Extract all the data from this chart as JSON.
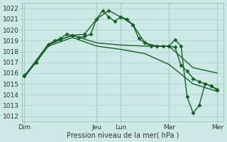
{
  "background_color": "#cce9e5",
  "grid_color": "#aad4ce",
  "line_color": "#1a5c2a",
  "ylabel_bottom": "Pression niveau de la mer( hPa )",
  "ylim": [
    1011.5,
    1022.5
  ],
  "yticks": [
    1012,
    1013,
    1014,
    1015,
    1016,
    1017,
    1018,
    1019,
    1020,
    1021,
    1022
  ],
  "xtick_labels": [
    "Dim",
    "Jeu",
    "Lun",
    "Mar",
    "Mer"
  ],
  "xtick_positions": [
    0,
    36,
    48,
    72,
    96
  ],
  "xlim": [
    -1,
    99
  ],
  "vline_positions": [
    0,
    36,
    48,
    72,
    96
  ],
  "series": [
    {
      "x": [
        0,
        6,
        12,
        15,
        18,
        21,
        24,
        27,
        30,
        33,
        36,
        39,
        42,
        45,
        48,
        51,
        54,
        57,
        60,
        63,
        66,
        69,
        72,
        75,
        78,
        81,
        84,
        87,
        90,
        93,
        96
      ],
      "y": [
        1015.8,
        1017.0,
        1018.6,
        1019.0,
        1019.2,
        1019.6,
        1019.5,
        1019.3,
        1019.4,
        1019.6,
        1021.0,
        1021.8,
        1021.2,
        1020.8,
        1021.2,
        1021.0,
        1020.5,
        1019.2,
        1018.8,
        1018.5,
        1018.5,
        1018.5,
        1018.5,
        1018.4,
        1016.7,
        1016.2,
        1015.5,
        1015.2,
        1015.0,
        1014.8,
        1014.5
      ],
      "markers": true,
      "linewidth": 1.0,
      "markersize": 2.5
    },
    {
      "x": [
        0,
        12,
        24,
        36,
        48,
        60,
        72,
        84,
        96
      ],
      "y": [
        1015.7,
        1018.7,
        1019.5,
        1018.8,
        1018.6,
        1018.5,
        1018.5,
        1016.5,
        1016.0
      ],
      "markers": false,
      "linewidth": 1.0,
      "markersize": 0
    },
    {
      "x": [
        0,
        12,
        24,
        36,
        48,
        60,
        72,
        84,
        96
      ],
      "y": [
        1015.6,
        1018.5,
        1019.3,
        1018.5,
        1018.2,
        1017.8,
        1016.8,
        1015.0,
        1014.3
      ],
      "markers": false,
      "linewidth": 1.0,
      "markersize": 0
    },
    {
      "x": [
        0,
        6,
        12,
        18,
        24,
        30,
        36,
        42,
        48,
        54,
        60,
        66,
        72,
        75,
        78,
        81,
        84,
        87,
        90,
        93,
        96
      ],
      "y": [
        1015.7,
        1017.0,
        1018.6,
        1019.1,
        1019.5,
        1019.6,
        1021.0,
        1021.8,
        1021.2,
        1020.5,
        1018.8,
        1018.5,
        1018.5,
        1019.1,
        1018.5,
        1013.8,
        1012.3,
        1013.0,
        1015.0,
        1014.8,
        1014.4
      ],
      "markers": true,
      "linewidth": 1.0,
      "markersize": 2.5
    }
  ]
}
